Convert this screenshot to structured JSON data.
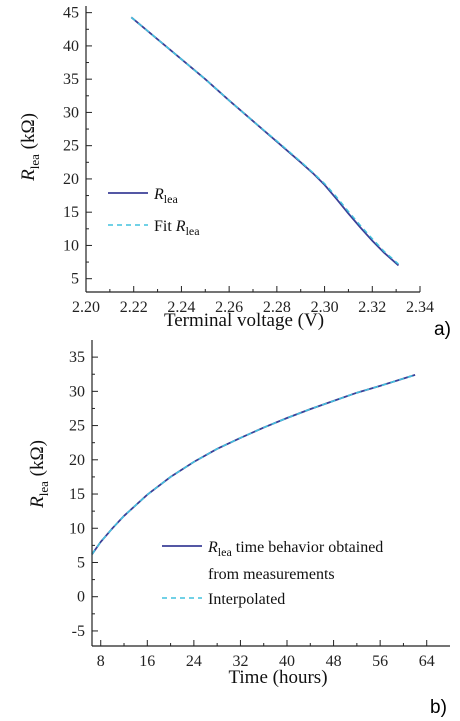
{
  "colors": {
    "measured": "#3b3f97",
    "fit": "#42c2dd",
    "axis": "#222222"
  },
  "charts": [
    {
      "panel_label": "a)",
      "chart_data": {
        "type": "line",
        "xlabel": "Terminal voltage (V)",
        "ylabel": "R",
        "ylabel_sub": "lea",
        "ylabel_unit": "(kΩ)",
        "xlim": [
          2.2,
          2.34
        ],
        "ylim": [
          3,
          46
        ],
        "xticks": [
          "2.20",
          "2.22",
          "2.24",
          "2.26",
          "2.28",
          "2.30",
          "2.32",
          "2.34"
        ],
        "yticks": [
          "5",
          "10",
          "15",
          "20",
          "25",
          "30",
          "35",
          "40",
          "45"
        ],
        "legend_position": "lower-left",
        "series": [
          {
            "label_main": "R",
            "label_sub": "lea",
            "label_prefix": "",
            "style": "solid",
            "x": [
              2.219,
              2.23,
              2.24,
              2.25,
              2.26,
              2.27,
              2.28,
              2.29,
              2.295,
              2.3,
              2.305,
              2.31,
              2.315,
              2.32,
              2.325,
              2.331
            ],
            "y": [
              44.3,
              41.0,
              38.0,
              35.0,
              31.8,
              28.7,
              25.6,
              22.5,
              20.9,
              19.1,
              17.0,
              14.8,
              12.7,
              10.7,
              8.9,
              7.0
            ]
          },
          {
            "label_main": "R",
            "label_sub": "lea",
            "label_prefix": "Fit ",
            "style": "dashed",
            "x": [
              2.219,
              2.23,
              2.24,
              2.25,
              2.26,
              2.27,
              2.28,
              2.29,
              2.295,
              2.3,
              2.305,
              2.31,
              2.315,
              2.32,
              2.325,
              2.331
            ],
            "y": [
              44.3,
              41.0,
              38.0,
              35.0,
              31.8,
              28.7,
              25.7,
              22.6,
              21.0,
              19.3,
              17.3,
              15.1,
              13.0,
              11.0,
              9.1,
              7.2
            ]
          }
        ]
      }
    },
    {
      "panel_label": "b)",
      "chart_data": {
        "type": "line",
        "xlabel": "Time (hours)",
        "ylabel": "R",
        "ylabel_sub": "lea",
        "ylabel_unit": "(kΩ)",
        "xlim": [
          6.5,
          68
        ],
        "ylim": [
          -7.2,
          37.5
        ],
        "xticks": [
          "8",
          "16",
          "24",
          "32",
          "40",
          "48",
          "56",
          "64"
        ],
        "yticks": [
          "-5",
          "0",
          "5",
          "10",
          "15",
          "20",
          "25",
          "30",
          "35"
        ],
        "legend_position": "lower-right",
        "series": [
          {
            "label_main": "R",
            "label_sub": "lea",
            "label_prefix": "",
            "label_suffix": " time behavior obtained",
            "label_line2": "from measurements",
            "style": "solid",
            "x": [
              6.5,
              8,
              10,
              12,
              16,
              20,
              24,
              28,
              32,
              36,
              40,
              44,
              48,
              52,
              56,
              62
            ],
            "y": [
              6.2,
              8.0,
              10.0,
              11.8,
              14.9,
              17.5,
              19.7,
              21.6,
              23.2,
              24.7,
              26.1,
              27.4,
              28.6,
              29.8,
              30.8,
              32.4
            ]
          },
          {
            "label_main": "",
            "label_sub": "",
            "label_prefix": "Interpolated",
            "style": "dashed",
            "x": [
              6.5,
              8,
              10,
              12,
              16,
              20,
              24,
              28,
              32,
              36,
              40,
              44,
              48,
              52,
              56,
              62
            ],
            "y": [
              6.2,
              8.0,
              10.0,
              11.8,
              14.9,
              17.5,
              19.7,
              21.6,
              23.2,
              24.7,
              26.1,
              27.4,
              28.6,
              29.8,
              30.8,
              32.4
            ]
          }
        ]
      }
    }
  ]
}
